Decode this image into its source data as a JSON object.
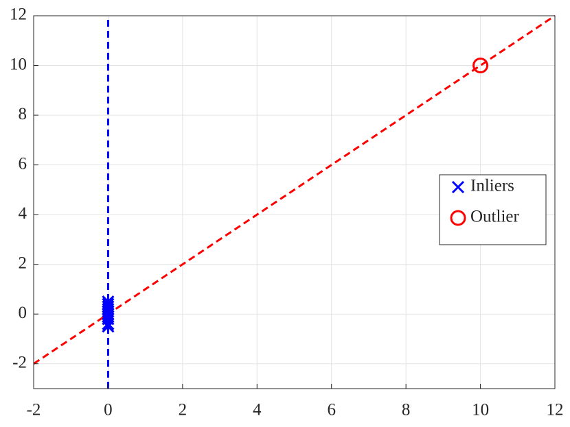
{
  "chart_data": {
    "type": "scatter",
    "xlim": [
      -2,
      12
    ],
    "ylim": [
      -3,
      12
    ],
    "xticks": [
      -2,
      0,
      2,
      4,
      6,
      8,
      10,
      12
    ],
    "yticks": [
      -2,
      0,
      2,
      4,
      6,
      8,
      10,
      12
    ],
    "grid": true,
    "legend": "east",
    "series": [
      {
        "name": "Inliers",
        "color": "#0000ff",
        "marker": "x",
        "x": [
          0,
          0,
          0,
          0,
          0,
          0,
          0,
          0,
          0,
          0
        ],
        "y": [
          0.5,
          0.4,
          0.3,
          0.2,
          0.1,
          0,
          -0.1,
          -0.2,
          -0.4,
          -0.5
        ]
      },
      {
        "name": "Outlier",
        "color": "#ff0000",
        "marker": "o",
        "x": [
          10
        ],
        "y": [
          10
        ]
      }
    ],
    "lines": [
      {
        "color": "#0000ff",
        "style": "dashed",
        "x": [
          0,
          0
        ],
        "y": [
          -3,
          12
        ]
      },
      {
        "color": "#ff0000",
        "style": "dashed",
        "x": [
          -2,
          12
        ],
        "y": [
          -2,
          12
        ]
      }
    ]
  }
}
